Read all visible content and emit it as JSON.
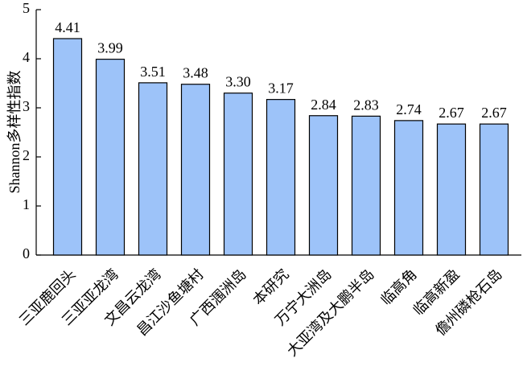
{
  "chart_data": {
    "type": "bar",
    "y_label": "Shannon多样性指数",
    "categories": [
      "三亚鹿回头",
      "三亚亚龙湾",
      "文昌云龙湾",
      "昌江沙鱼塘村",
      "广西涠洲岛",
      "本研究",
      "万宁大洲岛",
      "大亚湾及大鹏半岛",
      "临高角",
      "临高新盈",
      "儋州磷枪石岛"
    ],
    "values": [
      4.41,
      3.99,
      3.51,
      3.48,
      3.3,
      3.17,
      2.84,
      2.83,
      2.74,
      2.67,
      2.67
    ],
    "value_labels": [
      "4.41",
      "3.99",
      "3.51",
      "3.48",
      "3.30",
      "3.17",
      "2.84",
      "2.83",
      "2.74",
      "2.67",
      "2.67"
    ],
    "color": "#9dc3f9",
    "ylim": [
      0,
      5
    ],
    "yticks": [
      0,
      1,
      2,
      3,
      4,
      5
    ]
  }
}
